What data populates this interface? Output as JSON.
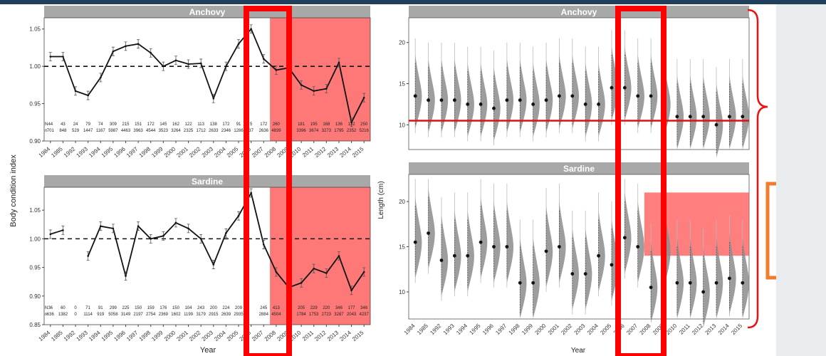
{
  "colors": {
    "highlight_fill": "#ff5a5a",
    "red_frame": "#ff0000",
    "orange_box": "#ef7d2d",
    "strip_bg": "#a8a8a8",
    "violin": "#8c8c8c"
  },
  "left_figure": {
    "y_axis_label": "Body condition index",
    "x_axis_label": "Year",
    "panels": [
      {
        "title": "Anchovy"
      },
      {
        "title": "Sardine"
      }
    ]
  },
  "right_figure": {
    "y_axis_label": "Length (cm)",
    "x_axis_label": "Year",
    "panels": [
      {
        "title": "Anchovy"
      },
      {
        "title": "Sardine"
      }
    ]
  },
  "chart_data": [
    {
      "type": "line",
      "title": "Anchovy",
      "ylabel": "Body condition index",
      "xlabel": "Year",
      "ylim": [
        0.9,
        1.065
      ],
      "reference_line": 1.0,
      "highlight_region_from": 2008,
      "years": [
        1984,
        1985,
        1992,
        1993,
        1994,
        1995,
        1996,
        1997,
        1998,
        1999,
        2000,
        2001,
        2002,
        2003,
        2004,
        2005,
        2006,
        2007,
        2008,
        2009,
        2010,
        2011,
        2012,
        2013,
        2014,
        2015
      ],
      "values": [
        1.013,
        1.013,
        0.967,
        0.961,
        0.985,
        1.02,
        1.027,
        1.03,
        1.018,
        1.0,
        1.008,
        1.003,
        1.004,
        0.957,
        1.0,
        1.03,
        1.05,
        1.01,
        0.995,
        0.998,
        0.975,
        0.967,
        0.97,
        1.005,
        0.925,
        0.958
      ],
      "n_row_1": [
        "44",
        "43",
        "24",
        "79",
        "74",
        "309",
        "215",
        "151",
        "172",
        "145",
        "162",
        "122",
        "113",
        "138",
        "172",
        "91",
        "5",
        "172",
        "260",
        "3",
        "181",
        "195",
        "168",
        "136",
        "132",
        "250"
      ],
      "n_row_2": [
        "701",
        "848",
        "529",
        "1447",
        "1167",
        "5987",
        "4463",
        "3963",
        "4544",
        "3523",
        "3264",
        "2325",
        "1712",
        "2633",
        "2346",
        "1286",
        "37",
        "2636",
        "4839",
        "1",
        "3396",
        "3674",
        "3273",
        "1795",
        "2352",
        "5216"
      ],
      "n_row_labels": [
        "N",
        "n"
      ]
    },
    {
      "type": "line",
      "title": "Sardine",
      "ylabel": "Body condition index",
      "xlabel": "Year",
      "ylim": [
        0.85,
        1.09
      ],
      "reference_line": 1.0,
      "highlight_region_from": 2008,
      "years": [
        1984,
        1985,
        1992,
        1993,
        1994,
        1995,
        1996,
        1997,
        1998,
        1999,
        2000,
        2001,
        2002,
        2003,
        2004,
        2005,
        2006,
        2007,
        2008,
        2009,
        2010,
        2011,
        2012,
        2013,
        2014,
        2015
      ],
      "values": [
        1.008,
        1.015,
        null,
        0.97,
        1.022,
        1.018,
        0.935,
        1.022,
        1.0,
        1.005,
        1.028,
        1.018,
        1.0,
        0.955,
        1.01,
        1.04,
        1.08,
        0.99,
        0.942,
        0.915,
        0.923,
        0.948,
        0.94,
        0.97,
        0.91,
        0.942
      ],
      "n_row_1": [
        "36",
        "60",
        "0",
        "71",
        "91",
        "299",
        "225",
        "150",
        "159",
        "176",
        "150",
        "104",
        "243",
        "200",
        "224",
        "209",
        "",
        "245",
        "413",
        "",
        "205",
        "229",
        "220",
        "346",
        "177",
        "346"
      ],
      "n_row_2": [
        "636",
        "1382",
        "0",
        "1114",
        "919",
        "5058",
        "3149",
        "2197",
        "2754",
        "2369",
        "1602",
        "1199",
        "3179",
        "2915",
        "2639",
        "2935",
        "",
        "2884",
        "4504",
        "",
        "1784",
        "1753",
        "2723",
        "3287",
        "2043",
        "4237"
      ],
      "n_row_labels": [
        "N",
        "n"
      ]
    },
    {
      "type": "violin",
      "title": "Anchovy",
      "ylabel": "Length (cm)",
      "xlabel": "Year",
      "ylim": [
        7,
        23
      ],
      "reference_line": 10.5,
      "years": [
        1984,
        1985,
        1992,
        1993,
        1994,
        1995,
        1996,
        1997,
        1998,
        1999,
        2000,
        2001,
        2002,
        2003,
        2004,
        2005,
        2006,
        2007,
        2008,
        2009,
        2010,
        2011,
        2012,
        2013,
        2014,
        2015
      ],
      "medians": [
        13.5,
        13,
        13,
        13,
        12.5,
        12.5,
        12,
        13,
        13,
        12.5,
        13,
        13.5,
        13.5,
        12.5,
        12.5,
        14.5,
        14.5,
        13.5,
        13.5,
        12.5,
        11,
        11,
        11,
        10,
        11,
        11
      ]
    },
    {
      "type": "violin",
      "title": "Sardine",
      "ylabel": "Length (cm)",
      "xlabel": "Year",
      "ylim": [
        7,
        23
      ],
      "highlight_region": {
        "from": 2008,
        "to": 2015,
        "y_from": 14,
        "y_to": 21
      },
      "years": [
        1984,
        1985,
        1992,
        1993,
        1994,
        1995,
        1996,
        1997,
        1998,
        1999,
        2000,
        2001,
        2002,
        2003,
        2004,
        2005,
        2006,
        2007,
        2008,
        2009,
        2010,
        2011,
        2012,
        2013,
        2014,
        2015
      ],
      "medians": [
        15.5,
        16.5,
        13.5,
        14,
        14,
        15.5,
        15,
        15,
        11,
        11,
        14.5,
        15,
        12,
        12,
        14,
        13,
        16,
        15,
        10.5,
        14.5,
        11,
        11,
        10,
        11,
        11.5,
        11
      ]
    }
  ]
}
